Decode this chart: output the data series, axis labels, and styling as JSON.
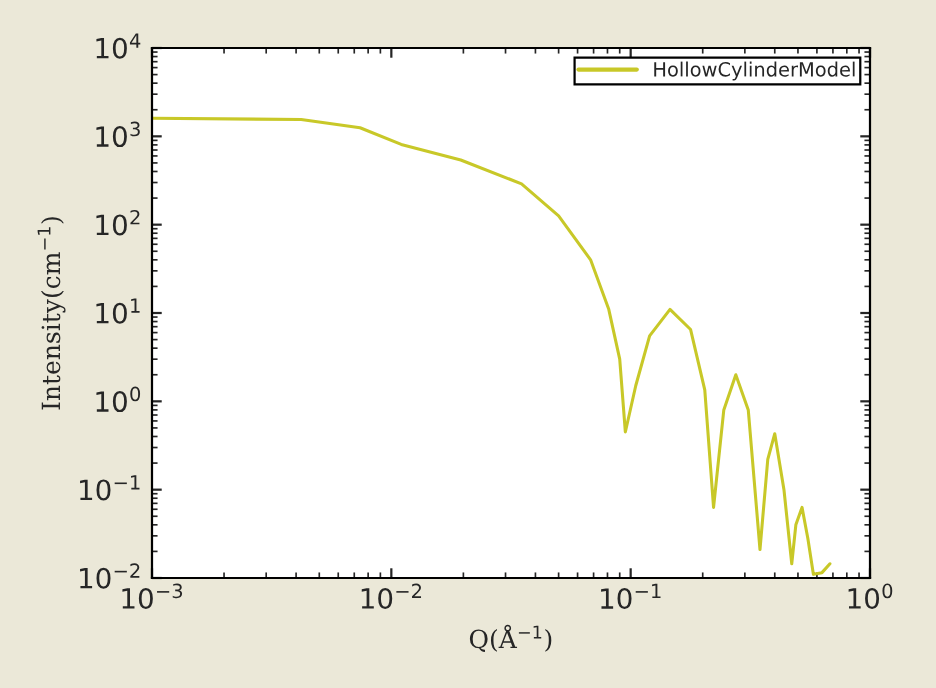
{
  "chart_data": {
    "type": "line",
    "xlabel": "Q(Å$^{−1}$)",
    "ylabel": "Intensity(cm$^{−1}$)",
    "log": "xy",
    "xlim": [
      0.001,
      1
    ],
    "ylim": [
      0.01,
      10000
    ],
    "xticks": [
      {
        "value": 0.001,
        "label": "10$^{−3}$"
      },
      {
        "value": 0.01,
        "label": "10$^{−2}$"
      },
      {
        "value": 0.1,
        "label": "10$^{−1}$"
      },
      {
        "value": 1,
        "label": "10$^{0}$"
      }
    ],
    "yticks": [
      {
        "value": 0.01,
        "label": "10$^{−2}$"
      },
      {
        "value": 0.1,
        "label": "10$^{−1}$"
      },
      {
        "value": 1,
        "label": "10$^{0}$"
      },
      {
        "value": 10,
        "label": "10$^{1}$"
      },
      {
        "value": 100,
        "label": "10$^{2}$"
      },
      {
        "value": 1000,
        "label": "10$^{3}$"
      },
      {
        "value": 10000,
        "label": "10$^{4}$"
      }
    ],
    "grid": false,
    "legend": "top right",
    "marker": "none",
    "line_style": "solid",
    "series": [
      {
        "name": "HollowCylinderModel",
        "color": "#c8c828",
        "x": [
          0.001,
          0.0042,
          0.0074,
          0.011,
          0.0195,
          0.035,
          0.05,
          0.068,
          0.081,
          0.09,
          0.095,
          0.105,
          0.12,
          0.146,
          0.178,
          0.204,
          0.222,
          0.245,
          0.275,
          0.31,
          0.347,
          0.374,
          0.4,
          0.437,
          0.471,
          0.49,
          0.52,
          0.55,
          0.58,
          0.63,
          0.68
        ],
        "values": [
          1600,
          1550,
          1250,
          810,
          540,
          290,
          126,
          40,
          11,
          3.0,
          0.45,
          1.5,
          5.5,
          11,
          6.5,
          1.35,
          0.063,
          0.8,
          2.0,
          0.8,
          0.021,
          0.22,
          0.43,
          0.1,
          0.0145,
          0.04,
          0.063,
          0.028,
          0.011,
          0.0115,
          0.0145
        ]
      }
    ]
  }
}
